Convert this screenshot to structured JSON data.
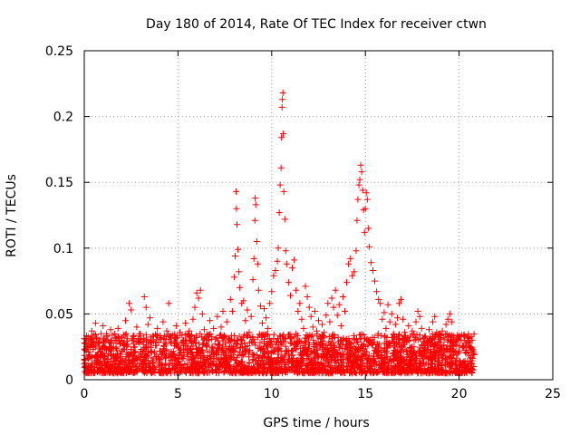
{
  "chart_data": {
    "type": "scatter",
    "title": "Day 180 of 2014, Rate Of TEC Index for receiver ctwn",
    "xlabel": "GPS time / hours",
    "ylabel": "ROTI / TECUs",
    "xlim": [
      0,
      25
    ],
    "ylim": [
      0,
      0.25
    ],
    "x_ticks": [
      "0",
      "5",
      "10",
      "15",
      "20",
      "25"
    ],
    "y_ticks": [
      "0",
      "0.05",
      "0.1",
      "0.15",
      "0.2",
      "0.25"
    ],
    "grid": true,
    "marker": "plus",
    "color": "#ff0000",
    "series": [
      {
        "note_background": "dense band of points between x 0 and 20.8 with ROTI mostly 0.005-0.04",
        "points": [
          [
            0.0,
            0.012
          ],
          [
            0.1,
            0.022
          ],
          [
            0.2,
            0.031
          ],
          [
            0.3,
            0.018
          ],
          [
            0.4,
            0.037
          ],
          [
            0.5,
            0.026
          ],
          [
            0.6,
            0.043
          ],
          [
            0.7,
            0.015
          ],
          [
            0.8,
            0.028
          ],
          [
            0.9,
            0.035
          ],
          [
            1.0,
            0.041
          ],
          [
            1.1,
            0.02
          ],
          [
            1.2,
            0.033
          ],
          [
            1.3,
            0.012
          ],
          [
            1.4,
            0.038
          ],
          [
            1.5,
            0.024
          ],
          [
            1.6,
            0.03
          ],
          [
            1.7,
            0.016
          ],
          [
            1.8,
            0.039
          ],
          [
            1.9,
            0.027
          ],
          [
            2.0,
            0.022
          ],
          [
            2.1,
            0.034
          ],
          [
            2.2,
            0.045
          ],
          [
            2.3,
            0.019
          ],
          [
            2.4,
            0.058
          ],
          [
            2.5,
            0.053
          ],
          [
            2.6,
            0.031
          ],
          [
            2.7,
            0.025
          ],
          [
            2.8,
            0.04
          ],
          [
            2.9,
            0.018
          ],
          [
            3.0,
            0.035
          ],
          [
            3.1,
            0.029
          ],
          [
            3.2,
            0.063
          ],
          [
            3.3,
            0.055
          ],
          [
            3.4,
            0.042
          ],
          [
            3.5,
            0.047
          ],
          [
            3.6,
            0.021
          ],
          [
            3.7,
            0.033
          ],
          [
            3.8,
            0.026
          ],
          [
            3.9,
            0.039
          ],
          [
            4.0,
            0.016
          ],
          [
            4.1,
            0.031
          ],
          [
            4.2,
            0.044
          ],
          [
            4.3,
            0.022
          ],
          [
            4.4,
            0.037
          ],
          [
            4.5,
            0.058
          ],
          [
            4.6,
            0.028
          ],
          [
            4.7,
            0.034
          ],
          [
            4.8,
            0.019
          ],
          [
            4.9,
            0.041
          ],
          [
            5.0,
            0.025
          ],
          [
            5.1,
            0.036
          ],
          [
            5.2,
            0.017
          ],
          [
            5.3,
            0.03
          ],
          [
            5.4,
            0.043
          ],
          [
            5.5,
            0.023
          ],
          [
            5.6,
            0.037
          ],
          [
            5.7,
            0.029
          ],
          [
            5.8,
            0.046
          ],
          [
            5.9,
            0.055
          ],
          [
            6.0,
            0.066
          ],
          [
            6.1,
            0.062
          ],
          [
            6.2,
            0.068
          ],
          [
            6.3,
            0.05
          ],
          [
            6.4,
            0.038
          ],
          [
            6.5,
            0.027
          ],
          [
            6.6,
            0.034
          ],
          [
            6.7,
            0.045
          ],
          [
            6.8,
            0.021
          ],
          [
            6.9,
            0.039
          ],
          [
            7.0,
            0.031
          ],
          [
            7.1,
            0.048
          ],
          [
            7.2,
            0.026
          ],
          [
            7.3,
            0.04
          ],
          [
            7.4,
            0.052
          ],
          [
            7.5,
            0.033
          ],
          [
            7.6,
            0.044
          ],
          [
            7.7,
            0.029
          ],
          [
            7.8,
            0.061
          ],
          [
            7.9,
            0.052
          ],
          [
            8.0,
            0.078
          ],
          [
            8.05,
            0.094
          ],
          [
            8.1,
            0.143
          ],
          [
            8.12,
            0.13
          ],
          [
            8.15,
            0.118
          ],
          [
            8.2,
            0.099
          ],
          [
            8.25,
            0.082
          ],
          [
            8.3,
            0.07
          ],
          [
            8.4,
            0.058
          ],
          [
            8.5,
            0.06
          ],
          [
            8.6,
            0.045
          ],
          [
            8.7,
            0.053
          ],
          [
            8.8,
            0.036
          ],
          [
            8.9,
            0.048
          ],
          [
            9.0,
            0.076
          ],
          [
            9.05,
            0.092
          ],
          [
            9.1,
            0.121
          ],
          [
            9.12,
            0.138
          ],
          [
            9.15,
            0.133
          ],
          [
            9.2,
            0.105
          ],
          [
            9.25,
            0.088
          ],
          [
            9.3,
            0.068
          ],
          [
            9.4,
            0.056
          ],
          [
            9.5,
            0.043
          ],
          [
            9.6,
            0.054
          ],
          [
            9.7,
            0.047
          ],
          [
            9.8,
            0.039
          ],
          [
            9.9,
            0.058
          ],
          [
            10.0,
            0.067
          ],
          [
            10.1,
            0.079
          ],
          [
            10.2,
            0.083
          ],
          [
            10.3,
            0.09
          ],
          [
            10.35,
            0.1
          ],
          [
            10.4,
            0.127
          ],
          [
            10.45,
            0.148
          ],
          [
            10.5,
            0.161
          ],
          [
            10.52,
            0.184
          ],
          [
            10.55,
            0.207
          ],
          [
            10.57,
            0.213
          ],
          [
            10.6,
            0.218
          ],
          [
            10.62,
            0.187
          ],
          [
            10.65,
            0.143
          ],
          [
            10.7,
            0.122
          ],
          [
            10.75,
            0.098
          ],
          [
            10.8,
            0.088
          ],
          [
            10.9,
            0.074
          ],
          [
            11.0,
            0.064
          ],
          [
            11.1,
            0.085
          ],
          [
            11.2,
            0.091
          ],
          [
            11.3,
            0.068
          ],
          [
            11.4,
            0.052
          ],
          [
            11.5,
            0.058
          ],
          [
            11.6,
            0.046
          ],
          [
            11.7,
            0.039
          ],
          [
            11.8,
            0.071
          ],
          [
            11.9,
            0.063
          ],
          [
            12.0,
            0.055
          ],
          [
            12.1,
            0.048
          ],
          [
            12.2,
            0.04
          ],
          [
            12.3,
            0.052
          ],
          [
            12.4,
            0.037
          ],
          [
            12.5,
            0.045
          ],
          [
            12.6,
            0.031
          ],
          [
            12.7,
            0.042
          ],
          [
            12.8,
            0.036
          ],
          [
            12.9,
            0.049
          ],
          [
            13.0,
            0.058
          ],
          [
            13.1,
            0.044
          ],
          [
            13.2,
            0.062
          ],
          [
            13.3,
            0.055
          ],
          [
            13.4,
            0.068
          ],
          [
            13.5,
            0.049
          ],
          [
            13.6,
            0.057
          ],
          [
            13.7,
            0.041
          ],
          [
            13.8,
            0.063
          ],
          [
            13.9,
            0.052
          ],
          [
            14.0,
            0.074
          ],
          [
            14.1,
            0.088
          ],
          [
            14.2,
            0.092
          ],
          [
            14.3,
            0.079
          ],
          [
            14.4,
            0.082
          ],
          [
            14.5,
            0.098
          ],
          [
            14.55,
            0.121
          ],
          [
            14.6,
            0.137
          ],
          [
            14.65,
            0.148
          ],
          [
            14.7,
            0.152
          ],
          [
            14.75,
            0.163
          ],
          [
            14.8,
            0.158
          ],
          [
            14.85,
            0.144
          ],
          [
            14.9,
            0.129
          ],
          [
            14.95,
            0.112
          ],
          [
            15.0,
            0.13
          ],
          [
            15.05,
            0.142
          ],
          [
            15.1,
            0.137
          ],
          [
            15.15,
            0.115
          ],
          [
            15.2,
            0.101
          ],
          [
            15.3,
            0.089
          ],
          [
            15.4,
            0.083
          ],
          [
            15.5,
            0.075
          ],
          [
            15.6,
            0.067
          ],
          [
            15.7,
            0.061
          ],
          [
            15.8,
            0.058
          ],
          [
            15.9,
            0.046
          ],
          [
            16.0,
            0.051
          ],
          [
            16.1,
            0.039
          ],
          [
            16.2,
            0.057
          ],
          [
            16.3,
            0.044
          ],
          [
            16.4,
            0.05
          ],
          [
            16.5,
            0.035
          ],
          [
            16.6,
            0.042
          ],
          [
            16.7,
            0.047
          ],
          [
            16.8,
            0.058
          ],
          [
            16.9,
            0.061
          ],
          [
            17.0,
            0.046
          ],
          [
            17.1,
            0.036
          ],
          [
            17.2,
            0.029
          ],
          [
            17.3,
            0.041
          ],
          [
            17.4,
            0.033
          ],
          [
            17.5,
            0.037
          ],
          [
            17.6,
            0.025
          ],
          [
            17.7,
            0.044
          ],
          [
            17.8,
            0.052
          ],
          [
            17.9,
            0.048
          ],
          [
            18.0,
            0.039
          ],
          [
            18.1,
            0.029
          ],
          [
            18.2,
            0.033
          ],
          [
            18.3,
            0.026
          ],
          [
            18.4,
            0.038
          ],
          [
            18.5,
            0.031
          ],
          [
            18.6,
            0.044
          ],
          [
            18.7,
            0.048
          ],
          [
            18.8,
            0.036
          ],
          [
            18.9,
            0.029
          ],
          [
            19.0,
            0.024
          ],
          [
            19.1,
            0.037
          ],
          [
            19.2,
            0.031
          ],
          [
            19.3,
            0.042
          ],
          [
            19.4,
            0.046
          ],
          [
            19.5,
            0.05
          ],
          [
            19.6,
            0.044
          ],
          [
            19.7,
            0.033
          ],
          [
            19.8,
            0.027
          ],
          [
            19.9,
            0.031
          ],
          [
            20.0,
            0.022
          ],
          [
            20.1,
            0.03
          ],
          [
            20.2,
            0.026
          ],
          [
            20.3,
            0.033
          ],
          [
            20.4,
            0.021
          ],
          [
            20.5,
            0.029
          ],
          [
            20.6,
            0.024
          ],
          [
            20.7,
            0.03
          ],
          [
            20.8,
            0.019
          ]
        ]
      }
    ]
  }
}
